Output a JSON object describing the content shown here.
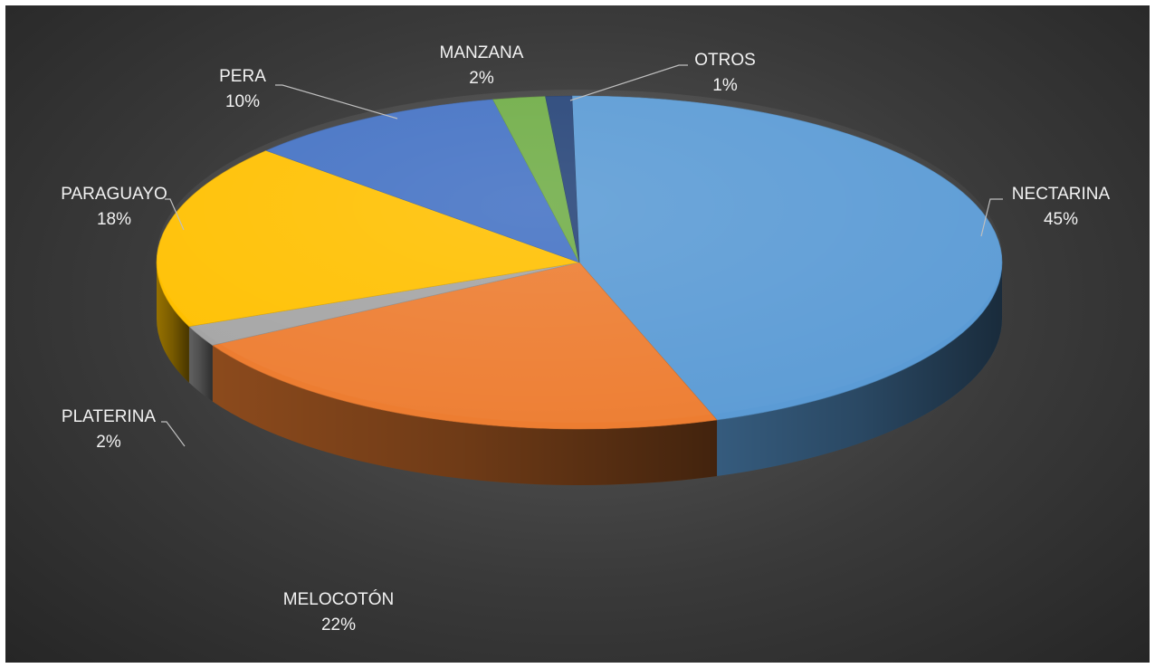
{
  "chart_data": {
    "type": "pie",
    "style": "3d",
    "slices": [
      {
        "label": "NECTARINA",
        "percent_label": "45%",
        "value": 45,
        "color": "#5b9bd5"
      },
      {
        "label": "MELOCOTÓN",
        "percent_label": "22%",
        "value": 22,
        "color": "#ed7d31"
      },
      {
        "label": "PLATERINA",
        "percent_label": "2%",
        "value": 2,
        "color": "#a5a5a5"
      },
      {
        "label": "PARAGUAYO",
        "percent_label": "18%",
        "value": 18,
        "color": "#ffc000"
      },
      {
        "label": "PERA",
        "percent_label": "10%",
        "value": 10,
        "color": "#4472c4"
      },
      {
        "label": "MANZANA",
        "percent_label": "2%",
        "value": 2,
        "color": "#70ad47"
      },
      {
        "label": "OTROS",
        "percent_label": "1%",
        "value": 1,
        "color": "#264478"
      }
    ],
    "legend": "none",
    "background": "#3a3a3a"
  }
}
